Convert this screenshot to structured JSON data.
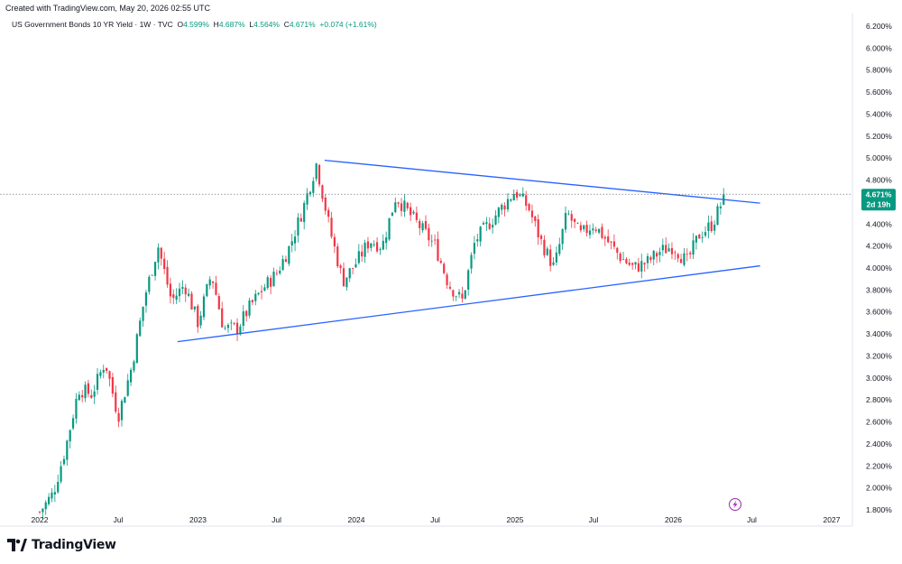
{
  "header": {
    "created_text": "Created with TradingView.com, May 20, 2026 02:55 UTC"
  },
  "symbol": {
    "title": "US Government Bonds 10 YR Yield · 1W · TVC",
    "open_label": "O",
    "open": "4.599%",
    "high_label": "H",
    "high": "4.687%",
    "low_label": "L",
    "low": "4.564%",
    "close_label": "C",
    "close": "4.671%",
    "change": "+0.074 (+1.61%)"
  },
  "price_tag": {
    "value": "4.671%",
    "countdown": "2d 19h"
  },
  "logo": {
    "text": "TradingView"
  },
  "colors": {
    "up": "#089981",
    "down": "#f23645",
    "trendline": "#2962ff",
    "last": "#089981"
  },
  "chart_data": {
    "type": "candlestick",
    "y_axis": {
      "side": "right",
      "unit": "%",
      "range": [
        1.75,
        6.25
      ],
      "ticks": [
        "6.200%",
        "6.000%",
        "5.800%",
        "5.600%",
        "5.400%",
        "5.200%",
        "5.000%",
        "4.800%",
        "4.600%",
        "4.400%",
        "4.200%",
        "4.000%",
        "3.800%",
        "3.600%",
        "3.400%",
        "3.200%",
        "3.000%",
        "2.800%",
        "2.600%",
        "2.400%",
        "2.200%",
        "2.000%",
        "1.800%"
      ]
    },
    "x_axis": {
      "ticks": [
        "2022",
        "Jul",
        "2023",
        "Jul",
        "2024",
        "Jul",
        "2025",
        "Jul",
        "2026",
        "Jul",
        "2027"
      ]
    },
    "last_price": 4.671,
    "path_points": [
      [
        "2022-01",
        1.78
      ],
      [
        "2022-02",
        1.95
      ],
      [
        "2022-03",
        2.35
      ],
      [
        "2022-04",
        2.9
      ],
      [
        "2022-05",
        2.85
      ],
      [
        "2022-06",
        3.15
      ],
      [
        "2022-07",
        2.65
      ],
      [
        "2022-08",
        3.1
      ],
      [
        "2022-09",
        3.75
      ],
      [
        "2022-10",
        4.2
      ],
      [
        "2022-11",
        3.7
      ],
      [
        "2022-12",
        3.85
      ],
      [
        "2023-01",
        3.5
      ],
      [
        "2023-02",
        3.95
      ],
      [
        "2023-03",
        3.45
      ],
      [
        "2023-04",
        3.45
      ],
      [
        "2023-05",
        3.65
      ],
      [
        "2023-06",
        3.82
      ],
      [
        "2023-07",
        3.95
      ],
      [
        "2023-08",
        4.2
      ],
      [
        "2023-09",
        4.55
      ],
      [
        "2023-10",
        4.95
      ],
      [
        "2023-11",
        4.35
      ],
      [
        "2023-12",
        3.88
      ],
      [
        "2024-01",
        4.05
      ],
      [
        "2024-02",
        4.25
      ],
      [
        "2024-03",
        4.2
      ],
      [
        "2024-04",
        4.65
      ],
      [
        "2024-05",
        4.5
      ],
      [
        "2024-06",
        4.35
      ],
      [
        "2024-07",
        4.2
      ],
      [
        "2024-08",
        3.85
      ],
      [
        "2024-09",
        3.7
      ],
      [
        "2024-10",
        4.25
      ],
      [
        "2024-11",
        4.4
      ],
      [
        "2024-12",
        4.55
      ],
      [
        "2025-01",
        4.7
      ],
      [
        "2025-02",
        4.55
      ],
      [
        "2025-03",
        4.25
      ],
      [
        "2025-04",
        4.0
      ],
      [
        "2025-05",
        4.5
      ],
      [
        "2025-06",
        4.3
      ],
      [
        "2025-07",
        4.4
      ],
      [
        "2025-08",
        4.25
      ],
      [
        "2025-09",
        4.1
      ],
      [
        "2025-10",
        4.0
      ],
      [
        "2025-11",
        4.05
      ],
      [
        "2025-12",
        4.15
      ],
      [
        "2026-01",
        4.2
      ],
      [
        "2026-02",
        4.05
      ],
      [
        "2026-03",
        4.3
      ],
      [
        "2026-04",
        4.4
      ],
      [
        "2026-05",
        4.671
      ]
    ],
    "trendlines": [
      {
        "from": [
          "2023-10-20",
          4.98
        ],
        "to": [
          "2026-07-20",
          4.59
        ]
      },
      {
        "from": [
          "2022-11-15",
          3.33
        ],
        "to": [
          "2026-07-20",
          4.02
        ]
      }
    ]
  }
}
